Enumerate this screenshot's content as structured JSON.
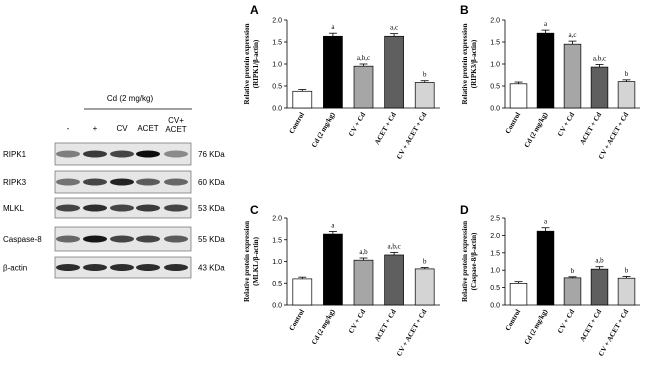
{
  "blot": {
    "header": "Cd (2 mg/kg)",
    "lanes": [
      "-",
      "+",
      "CV",
      "ACET",
      "CV+ ACET"
    ],
    "rows": [
      {
        "protein": "RIPK1",
        "size": "76 KDa"
      },
      {
        "protein": "RIPK3",
        "size": "60 KDa"
      },
      {
        "protein": "MLKL",
        "size": "53 KDa"
      },
      {
        "protein": "Caspase-8",
        "size": "55 KDa"
      },
      {
        "protein": "β-actin",
        "size": "43 KDa"
      }
    ]
  },
  "chart_data": [
    {
      "type": "bar",
      "panel": "A",
      "ylabel": [
        "Relative protein expression",
        "(RIPK1/β-actin)"
      ],
      "categories": [
        "Control",
        "Cd (2 mg/kg)",
        "CV + Cd",
        "ACET + Cd",
        "CV + ACET + Cd"
      ],
      "values": [
        0.38,
        1.63,
        0.95,
        1.63,
        0.58
      ],
      "errors": [
        0.04,
        0.07,
        0.05,
        0.06,
        0.04
      ],
      "annotations": [
        null,
        "a",
        "a,b,c",
        "a,c",
        "b"
      ],
      "colors": [
        "#ffffff",
        "#000000",
        "#a6a6a6",
        "#5f5f5f",
        "#d4d4d4"
      ],
      "ylim": [
        0,
        2
      ],
      "yticks": [
        {
          "value": 0,
          "label": "0.0"
        },
        {
          "value": 0.5,
          "label": "0.5"
        },
        {
          "value": 1,
          "label": "1.0"
        },
        {
          "value": 1.5,
          "label": "1.5"
        },
        {
          "value": 2,
          "label": "2.0"
        }
      ]
    },
    {
      "type": "bar",
      "panel": "B",
      "ylabel": [
        "Relative protein expression",
        "(RIPK3/β-actin)"
      ],
      "categories": [
        "Control",
        "Cd (2 mg/kg)",
        "CV + Cd",
        "ACET + Cd",
        "CV + ACET + Cd"
      ],
      "values": [
        0.55,
        1.7,
        1.45,
        0.93,
        0.6
      ],
      "errors": [
        0.04,
        0.07,
        0.07,
        0.06,
        0.04
      ],
      "annotations": [
        null,
        "a",
        "a,c",
        "a,b,c",
        "b"
      ],
      "colors": [
        "#ffffff",
        "#000000",
        "#a6a6a6",
        "#5f5f5f",
        "#d4d4d4"
      ],
      "ylim": [
        0,
        2
      ],
      "yticks": [
        {
          "value": 0,
          "label": "0.0"
        },
        {
          "value": 0.5,
          "label": "0.5"
        },
        {
          "value": 1,
          "label": "1.0"
        },
        {
          "value": 1.5,
          "label": "1.5"
        },
        {
          "value": 2,
          "label": "2.0"
        }
      ]
    },
    {
      "type": "bar",
      "panel": "C",
      "ylabel": [
        "Relative protein expression",
        "(MLKL/β-actin)"
      ],
      "categories": [
        "Control",
        "Cd (2 mg/kg)",
        "CV + Cd",
        "ACET + Cd",
        "CV + ACET + Cd"
      ],
      "values": [
        0.6,
        1.63,
        1.03,
        1.15,
        0.83
      ],
      "errors": [
        0.04,
        0.06,
        0.05,
        0.06,
        0.03
      ],
      "annotations": [
        null,
        "a",
        "a,b",
        "a,b,c",
        "b"
      ],
      "colors": [
        "#ffffff",
        "#000000",
        "#a6a6a6",
        "#5f5f5f",
        "#d4d4d4"
      ],
      "ylim": [
        0,
        2
      ],
      "yticks": [
        {
          "value": 0,
          "label": "0.0"
        },
        {
          "value": 0.5,
          "label": "0.5"
        },
        {
          "value": 1,
          "label": "1.0"
        },
        {
          "value": 1.5,
          "label": "1.5"
        },
        {
          "value": 2,
          "label": "2.0"
        }
      ]
    },
    {
      "type": "bar",
      "panel": "D",
      "ylabel": [
        "Relative protein expression",
        "(Caspase-8/β-actin)"
      ],
      "categories": [
        "Control",
        "Cd (2 mg/kg)",
        "CV + Cd",
        "ACET + Cd",
        "CV + ACET + Cd"
      ],
      "values": [
        0.62,
        2.12,
        0.78,
        1.03,
        0.77
      ],
      "errors": [
        0.05,
        0.1,
        0.03,
        0.07,
        0.05
      ],
      "annotations": [
        null,
        "a",
        "b",
        "a,b",
        "b"
      ],
      "colors": [
        "#ffffff",
        "#000000",
        "#a6a6a6",
        "#5f5f5f",
        "#d4d4d4"
      ],
      "ylim": [
        0,
        2.5
      ],
      "yticks": [
        {
          "value": 0,
          "label": "0.0"
        },
        {
          "value": 0.5,
          "label": "0.5"
        },
        {
          "value": 1,
          "label": "1.0"
        },
        {
          "value": 1.5,
          "label": "1.5"
        },
        {
          "value": 2,
          "label": "2.0"
        },
        {
          "value": 2.5,
          "label": "2.5"
        }
      ]
    }
  ]
}
